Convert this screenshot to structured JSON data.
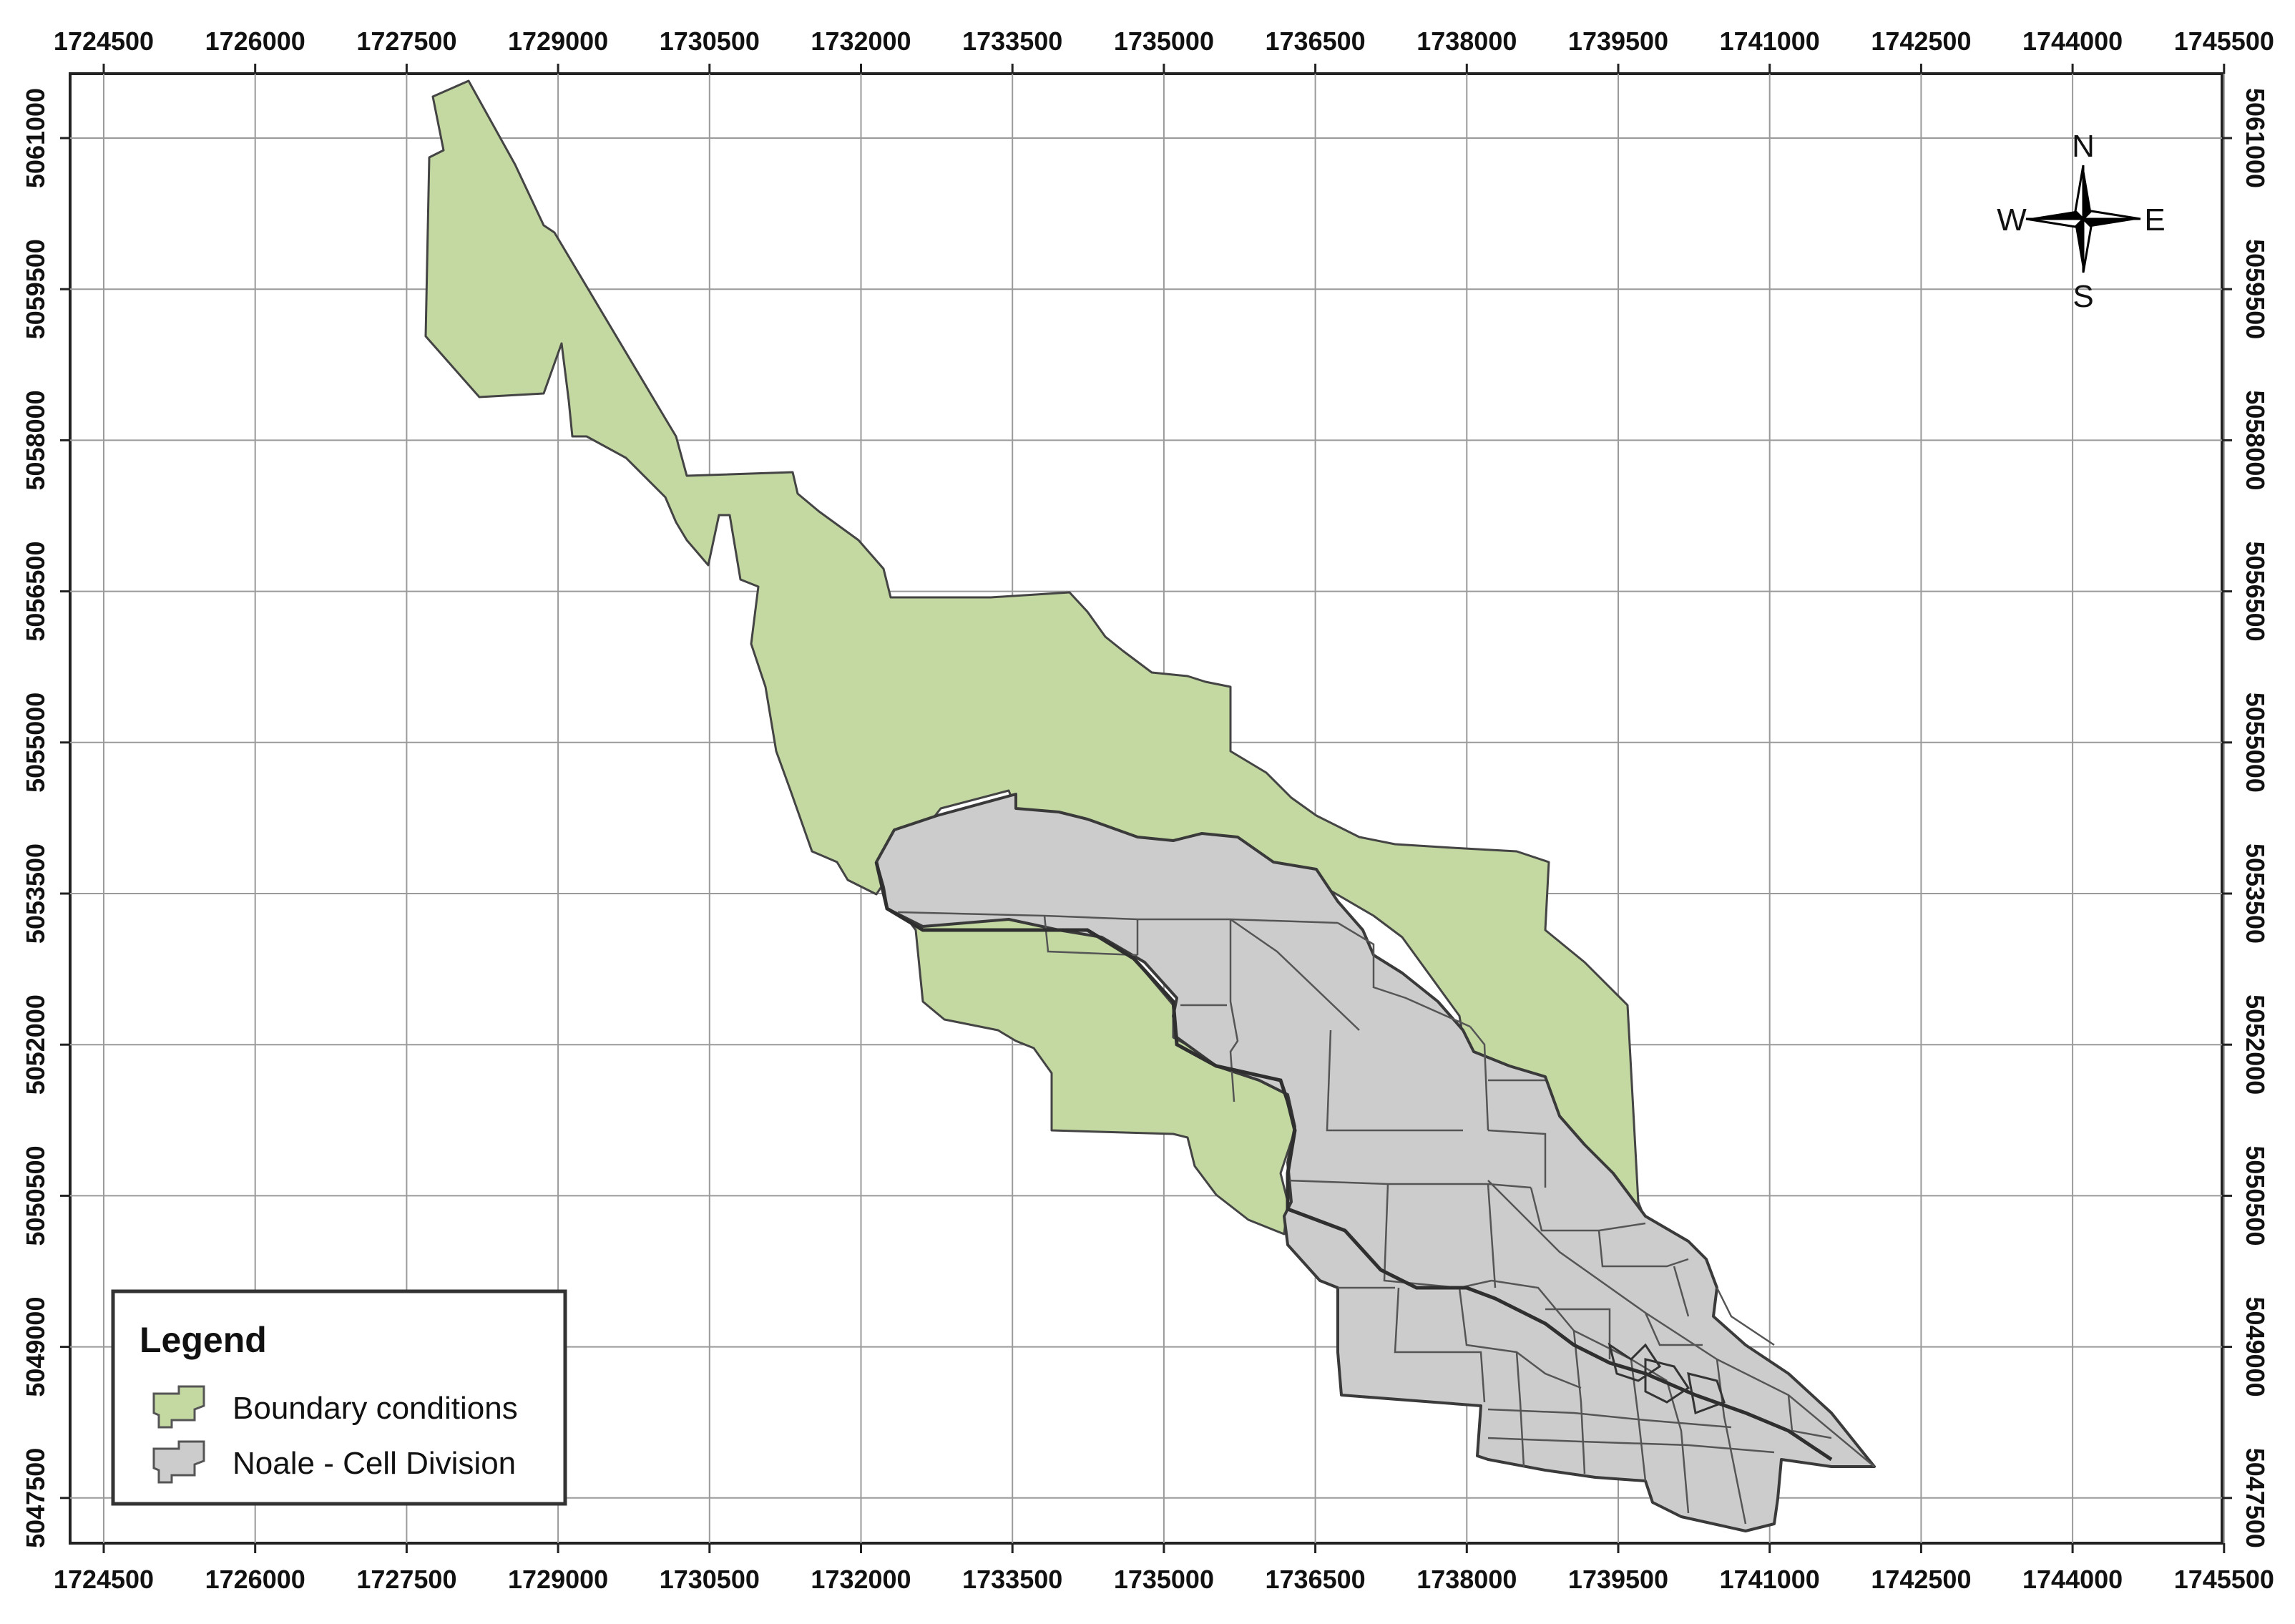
{
  "map": {
    "x_ticks": [
      "1724500",
      "1726000",
      "1727500",
      "1729000",
      "1730500",
      "1732000",
      "1733500",
      "1735000",
      "1736500",
      "1738000",
      "1739500",
      "1741000",
      "1742500",
      "1744000",
      "1745500"
    ],
    "y_ticks": [
      "5061000",
      "5059500",
      "5058000",
      "5056500",
      "5055000",
      "5053500",
      "5052000",
      "5050500",
      "5049000",
      "5047500"
    ],
    "compass": {
      "n": "N",
      "e": "E",
      "s": "S",
      "w": "W"
    },
    "legend": {
      "title": "Legend",
      "items": [
        {
          "label": "Boundary conditions",
          "color": "#c4d9a1"
        },
        {
          "label": "Noale - Cell Division",
          "color": "#cccccc"
        }
      ]
    },
    "colors": {
      "green": "#c4d9a1",
      "grey": "#cccccc",
      "outline": "#444444",
      "grid": "#9a9a9a"
    }
  }
}
